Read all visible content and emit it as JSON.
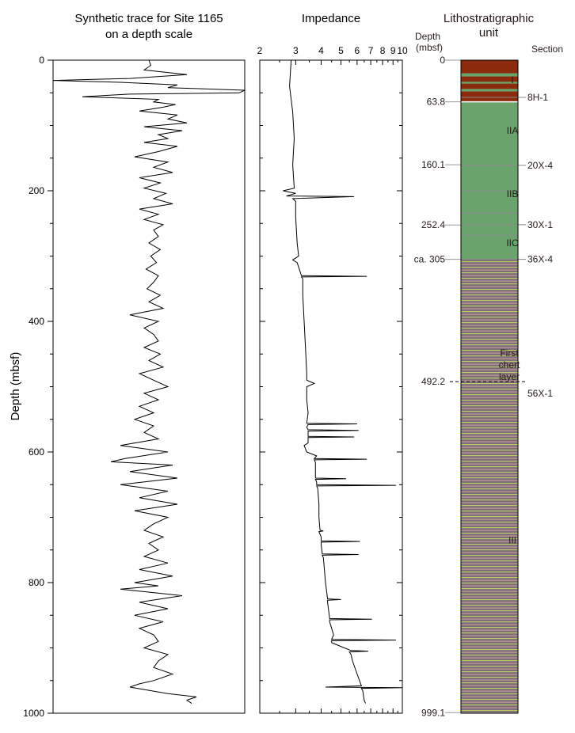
{
  "chart_data": [
    {
      "type": "line",
      "title_lines": [
        "Synthetic trace for Site 1165",
        "on a depth scale"
      ],
      "ylabel": "Depth (mbsf)",
      "ylim": [
        1000,
        0
      ],
      "yticks": [
        "0",
        "200",
        "400",
        "600",
        "800",
        "1000"
      ],
      "x_axis": "none",
      "grid": false,
      "series": [
        {
          "depth": [
            0,
            8,
            15,
            22,
            28,
            31,
            34,
            38,
            42,
            46,
            50,
            52,
            56,
            60,
            64,
            68,
            72,
            78,
            84,
            90,
            96,
            102,
            108,
            114,
            120,
            126,
            132,
            140,
            148,
            156,
            164,
            172,
            180,
            188,
            196,
            204,
            212,
            220,
            228,
            236,
            244,
            252,
            260,
            270,
            280,
            290,
            300,
            310,
            320,
            330,
            340,
            350,
            360,
            370,
            380,
            390,
            400,
            410,
            420,
            430,
            440,
            450,
            460,
            470,
            480,
            490,
            500,
            510,
            520,
            530,
            540,
            550,
            560,
            570,
            580,
            590,
            600,
            610,
            615,
            620,
            630,
            640,
            650,
            660,
            670,
            680,
            690,
            700,
            710,
            720,
            730,
            740,
            750,
            760,
            770,
            780,
            790,
            800,
            805,
            810,
            820,
            830,
            840,
            850,
            860,
            870,
            880,
            890,
            900,
            910,
            920,
            930,
            940,
            950,
            955,
            960,
            965,
            970,
            975,
            980,
            985
          ],
          "amplitude": [
            0,
            0.02,
            -0.05,
            0.4,
            -0.2,
            -1.45,
            -0.3,
            0.3,
            0.2,
            1.3,
            0.95,
            -0.2,
            -0.7,
            0.1,
            0.05,
            0.28,
            0.15,
            -0.1,
            0.3,
            0.2,
            0.4,
            -0.05,
            0.35,
            0.1,
            0.2,
            -0.05,
            0.3,
            0.1,
            -0.15,
            0.2,
            0.05,
            0.25,
            -0.1,
            0.12,
            -0.05,
            0.18,
            0.05,
            0.25,
            -0.1,
            0.1,
            -0.05,
            0.15,
            0.05,
            0.1,
            0,
            0.12,
            0.02,
            0.08,
            -0.03,
            0.1,
            0.05,
            -0.02,
            0.12,
            0,
            0.15,
            -0.2,
            0.1,
            -0.05,
            0.05,
            0.1,
            -0.05,
            0.12,
            0,
            0.15,
            -0.1,
            0.05,
            0.2,
            -0.05,
            0.1,
            -0.1,
            0.05,
            -0.15,
            0.05,
            -0.05,
            0.1,
            -0.3,
            0.2,
            -0.25,
            -0.4,
            0.25,
            -0.2,
            0.3,
            -0.3,
            0.2,
            -0.1,
            0.3,
            -0.15,
            0.2,
            0.05,
            -0.05,
            0.15,
            0,
            0.1,
            -0.05,
            0.2,
            -0.1,
            0.25,
            -0.15,
            0.1,
            -0.3,
            0.35,
            -0.1,
            0.2,
            -0.15,
            0.15,
            -0.1,
            0.05,
            0.1,
            -0.05,
            0.2,
            0.1,
            0.05,
            0.25,
            0.05,
            -0.1,
            -0.2,
            0,
            0.2,
            0.5,
            0.4,
            0.45
          ]
        }
      ]
    },
    {
      "type": "line",
      "title": "Impedance",
      "x_scale": "log",
      "xlim": [
        2,
        10
      ],
      "xticks": [
        "2",
        "3",
        "4",
        "5",
        "6",
        "7",
        "8",
        "9",
        "10"
      ],
      "ylim": [
        1000,
        0
      ],
      "grid": false,
      "series": [
        {
          "depth": [
            0,
            40,
            80,
            120,
            160,
            196,
            200,
            204,
            208,
            209,
            212,
            216,
            240,
            280,
            300,
            306,
            310,
            330,
            331,
            332,
            335,
            360,
            400,
            440,
            480,
            490,
            495,
            500,
            520,
            540,
            556,
            557,
            558,
            562,
            566,
            567,
            568,
            572,
            576,
            577,
            578,
            582,
            586,
            590,
            600,
            606,
            610,
            611,
            612,
            616,
            640,
            641,
            642,
            646,
            650,
            651,
            652,
            656,
            680,
            700,
            720,
            721,
            722,
            730,
            736,
            737,
            738,
            742,
            756,
            757,
            758,
            762,
            800,
            825,
            826,
            827,
            830,
            855,
            856,
            857,
            860,
            880,
            887,
            888,
            889,
            892,
            900,
            904,
            905,
            906,
            910,
            920,
            940,
            958,
            960,
            961,
            962,
            966,
            980,
            985
          ],
          "impedance": [
            2.85,
            2.8,
            2.9,
            2.95,
            2.9,
            2.95,
            2.6,
            3.0,
            2.7,
            5.8,
            2.9,
            3.0,
            3.0,
            3.05,
            3.1,
            2.9,
            3.05,
            3.2,
            6.7,
            3.2,
            3.25,
            3.25,
            3.3,
            3.35,
            3.4,
            3.4,
            3.7,
            3.4,
            3.4,
            3.45,
            3.4,
            6.0,
            3.45,
            3.4,
            3.45,
            6.1,
            3.45,
            3.45,
            3.45,
            5.8,
            3.45,
            3.45,
            3.45,
            3.3,
            3.4,
            3.8,
            3.7,
            6.7,
            3.7,
            3.75,
            3.75,
            5.3,
            3.75,
            3.8,
            3.8,
            9.3,
            3.8,
            3.85,
            3.9,
            3.9,
            3.95,
            4.1,
            3.9,
            4.0,
            4.0,
            6.2,
            4.0,
            4.0,
            4.05,
            6.1,
            4.05,
            4.1,
            4.2,
            4.3,
            5.0,
            4.3,
            4.3,
            4.4,
            7.1,
            4.4,
            4.4,
            4.6,
            4.5,
            9.3,
            4.5,
            4.5,
            5.2,
            5.6,
            6.8,
            5.5,
            5.6,
            5.7,
            6.0,
            6.3,
            4.2,
            10.0,
            6.3,
            6.4,
            6.5,
            6.6
          ]
        }
      ]
    },
    {
      "type": "table",
      "title_lines": [
        "Lithostratigraphic",
        "unit"
      ],
      "depth_header": "Depth",
      "depth_header_unit": "(mbsf)",
      "section_header": "Section",
      "ylim": [
        1000,
        0
      ],
      "boundaries": [
        {
          "label": "0",
          "depth": 0
        },
        {
          "label": "63.8",
          "depth": 63.8,
          "section": "8H-1",
          "section_depth": 57
        },
        {
          "label": "160.1",
          "depth": 160.1,
          "section": "20X-4",
          "section_depth": 161
        },
        {
          "label": "252.4",
          "depth": 252.4,
          "section": "30X-1",
          "section_depth": 252
        },
        {
          "label": "ca. 305",
          "depth": 305,
          "section": "36X-4",
          "section_depth": 305
        },
        {
          "label": "492.2",
          "depth": 492.2,
          "dashed": true
        },
        {
          "label": "999.1",
          "depth": 999.1
        }
      ],
      "extra_sections": [
        {
          "label": "56X-1",
          "depth": 510
        }
      ],
      "units": [
        {
          "label": "I",
          "top": 0,
          "bottom": 63.8,
          "label_depth": 30,
          "color": "#8b2a0c"
        },
        {
          "label": "IIA",
          "top": 63.8,
          "bottom": 160.1,
          "label_depth": 108,
          "color": "#6aa36c"
        },
        {
          "label": "IIB",
          "top": 160.1,
          "bottom": 252.4,
          "label_depth": 205,
          "color": "#6aa36c"
        },
        {
          "label": "IIC",
          "top": 252.4,
          "bottom": 305,
          "label_depth": 280,
          "color": "#6aa36c"
        },
        {
          "label": "III",
          "top": 305,
          "bottom": 999.1,
          "label_depth": 735,
          "color": "#7e6f77"
        }
      ],
      "annotation_lines": [
        "First",
        "chert",
        "layer"
      ],
      "annotation_depth": 492.2,
      "internal_lines": [
        200,
        234,
        268
      ],
      "band_colors": [
        "#c8d86c",
        "#d0a1a8"
      ]
    }
  ]
}
